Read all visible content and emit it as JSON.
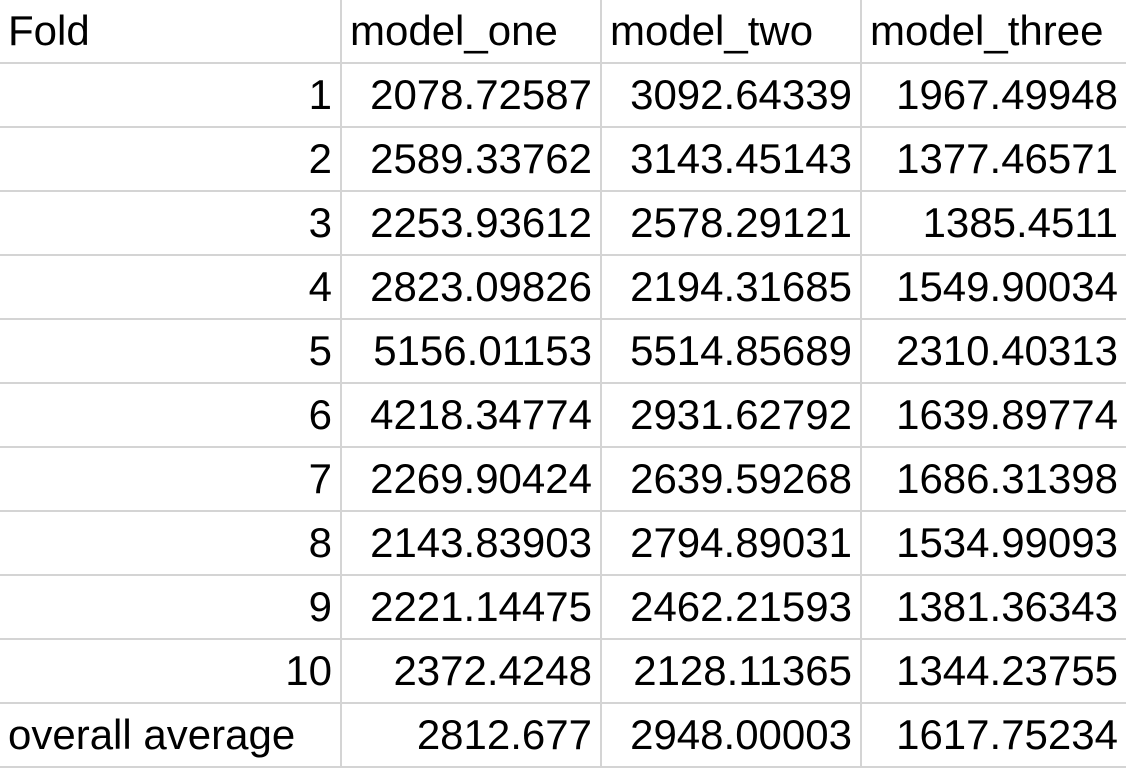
{
  "header": {
    "fold": "Fold",
    "model_one": "model_one",
    "model_two": "model_two",
    "model_three": "model_three"
  },
  "rows": [
    {
      "fold": "1",
      "model_one": "2078.72587",
      "model_two": "3092.64339",
      "model_three": "1967.49948"
    },
    {
      "fold": "2",
      "model_one": "2589.33762",
      "model_two": "3143.45143",
      "model_three": "1377.46571"
    },
    {
      "fold": "3",
      "model_one": "2253.93612",
      "model_two": "2578.29121",
      "model_three": "1385.4511"
    },
    {
      "fold": "4",
      "model_one": "2823.09826",
      "model_two": "2194.31685",
      "model_three": "1549.90034"
    },
    {
      "fold": "5",
      "model_one": "5156.01153",
      "model_two": "5514.85689",
      "model_three": "2310.40313"
    },
    {
      "fold": "6",
      "model_one": "4218.34774",
      "model_two": "2931.62792",
      "model_three": "1639.89774"
    },
    {
      "fold": "7",
      "model_one": "2269.90424",
      "model_two": "2639.59268",
      "model_three": "1686.31398"
    },
    {
      "fold": "8",
      "model_one": "2143.83903",
      "model_two": "2794.89031",
      "model_three": "1534.99093"
    },
    {
      "fold": "9",
      "model_one": "2221.14475",
      "model_two": "2462.21593",
      "model_three": "1381.36343"
    },
    {
      "fold": "10",
      "model_one": "2372.4248",
      "model_two": "2128.11365",
      "model_three": "1344.23755"
    }
  ],
  "summary": {
    "label": "overall average",
    "model_one": "2812.677",
    "model_two": "2948.00003",
    "model_three": "1617.75234"
  }
}
